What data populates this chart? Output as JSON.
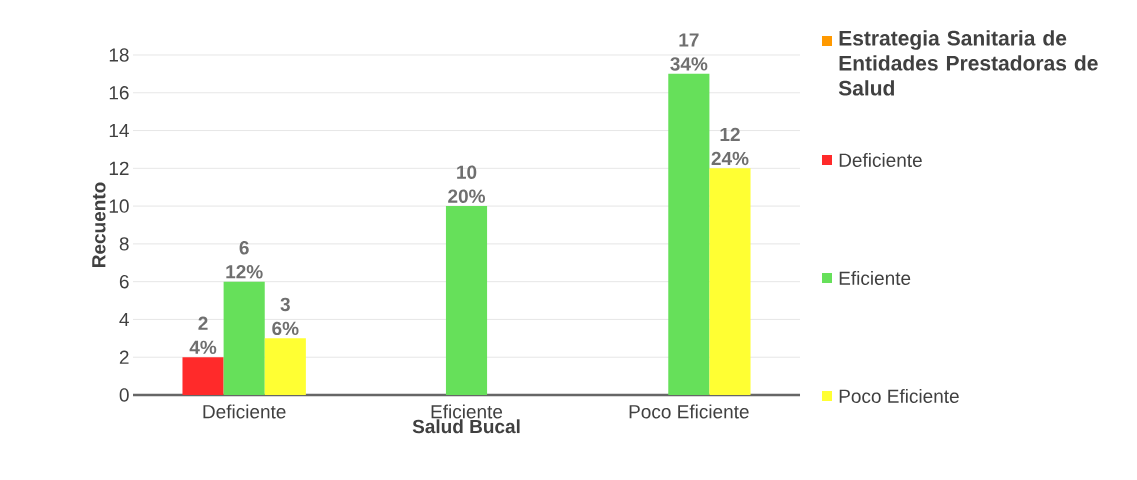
{
  "chart_data": {
    "type": "bar",
    "xlabel": "Salud Bucal",
    "ylabel": "Recuento",
    "legend_title": "Estrategia Sanitaria de Entidades Prestadoras de Salud",
    "categories": [
      "Deficiente",
      "Eficiente",
      "Poco Eficiente"
    ],
    "series": [
      {
        "name": "Deficiente",
        "color": "#ff2a2a",
        "values": [
          2,
          null,
          null
        ],
        "value_labels": [
          "2 4%",
          null,
          null
        ]
      },
      {
        "name": "Eficiente",
        "color": "#66e05a",
        "values": [
          6,
          10,
          17
        ],
        "value_labels": [
          "6 12%",
          "10 20%",
          "17 34%"
        ]
      },
      {
        "name": "Poco Eficiente",
        "color": "#ffff33",
        "values": [
          3,
          null,
          12
        ],
        "value_labels": [
          "3 6%",
          null,
          "12 24%"
        ]
      }
    ],
    "ylim": [
      0,
      18
    ],
    "yticks": [
      0,
      2,
      4,
      6,
      8,
      10,
      12,
      14,
      16,
      18
    ],
    "grid": "y",
    "legend": "right"
  }
}
